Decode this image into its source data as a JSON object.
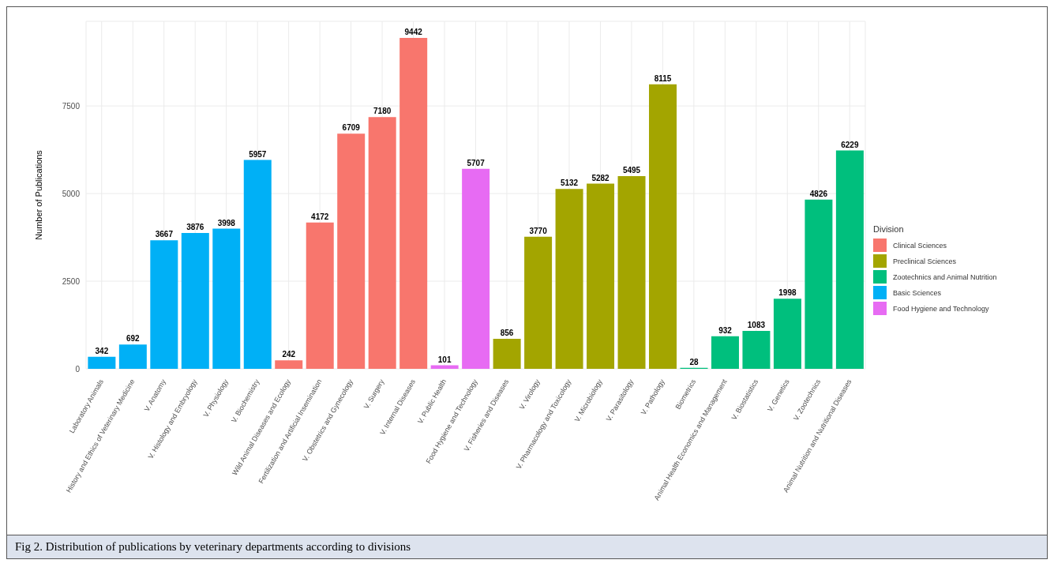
{
  "chart_data": {
    "type": "bar",
    "stacked": true,
    "ylabel": "Number of Publications",
    "legend_title": "Division",
    "legend": "right",
    "grid": true,
    "data_labels": true,
    "categories": [
      "Laboratory Animals",
      "History and Ethics of Veterinary Medicine",
      "V. Anatomy",
      "V. Histology and Embryology",
      "V. Physiology",
      "V. Biochemistry",
      "Wild Animal Diseases and Ecology",
      "Fertilization and Artificial Insemination",
      "V. Obstetrics and Gynecology",
      "V. Surgery",
      "V. Internal Diseases",
      "V. Public Health",
      "Food Hygiene and Technology",
      "V. Fisheries and Diseases",
      "V. Virology",
      "V. Pharmacology and Toxicology",
      "V. Microbiology",
      "V. Parasitology",
      "V. Pathology",
      "Biometrics",
      "Animal Health Economics and Management",
      "V. Biostatistics",
      "V. Genetics",
      "V. Zootechnics",
      "Animal Nutrition and Nutritional Diseases"
    ],
    "series": [
      {
        "name": "Clinical Sciences",
        "color": "#f8766d",
        "values": [
          null,
          null,
          null,
          null,
          null,
          null,
          242,
          4172,
          6709,
          7180,
          9442,
          null,
          null,
          null,
          null,
          null,
          null,
          null,
          null,
          null,
          null,
          null,
          null,
          null,
          null
        ]
      },
      {
        "name": "Preclinical Sciences",
        "color": "#a3a500",
        "values": [
          null,
          null,
          null,
          null,
          null,
          null,
          null,
          null,
          null,
          null,
          null,
          null,
          null,
          856,
          3770,
          5132,
          5282,
          5495,
          8115,
          null,
          null,
          null,
          null,
          null,
          null
        ]
      },
      {
        "name": "Zootechnics and Animal Nutrition",
        "color": "#00bf7d",
        "values": [
          null,
          null,
          null,
          null,
          null,
          null,
          null,
          null,
          null,
          null,
          null,
          null,
          null,
          null,
          null,
          null,
          null,
          null,
          null,
          28,
          932,
          1083,
          1998,
          4826,
          6229
        ]
      },
      {
        "name": "Basic Sciences",
        "color": "#00b0f6",
        "values": [
          342,
          692,
          3667,
          3876,
          3998,
          5957,
          null,
          null,
          null,
          null,
          null,
          null,
          null,
          null,
          null,
          null,
          null,
          null,
          null,
          null,
          null,
          null,
          null,
          null,
          null
        ]
      },
      {
        "name": "Food Hygiene and Technology",
        "color": "#e76bf3",
        "values": [
          null,
          null,
          null,
          null,
          null,
          null,
          null,
          null,
          null,
          null,
          null,
          101,
          5707,
          null,
          null,
          null,
          null,
          null,
          null,
          null,
          null,
          null,
          null,
          null,
          null
        ]
      }
    ],
    "ylim": [
      0,
      9914
    ],
    "yticks": [
      0,
      2500,
      5000,
      7500
    ],
    "annotations": [
      "Fig 2. Distribution of publications by veterinary departments according to divisions"
    ]
  }
}
